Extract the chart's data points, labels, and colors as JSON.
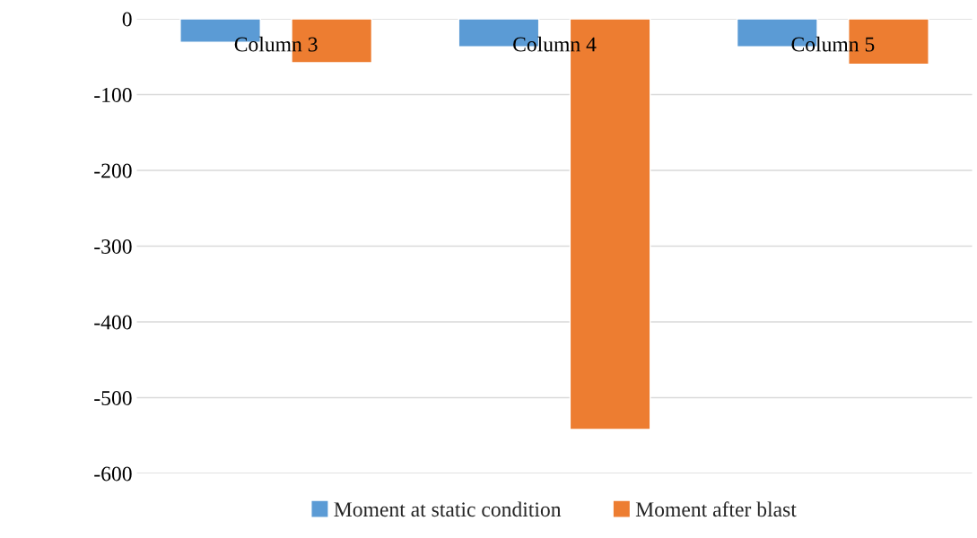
{
  "chart_data": {
    "type": "bar",
    "categories": [
      "Column 3",
      "Column 4",
      "Column 5"
    ],
    "series": [
      {
        "name": "Moment at static condition",
        "color": "#5b9bd5",
        "values": [
          -31,
          -37,
          -37
        ]
      },
      {
        "name": "Moment after blast",
        "color": "#ed7d31",
        "values": [
          -58,
          -542,
          -60
        ]
      }
    ],
    "ylim": [
      -600,
      0
    ],
    "yticks": [
      -600,
      -500,
      -400,
      -300,
      -200,
      -100,
      0
    ],
    "grid": "y",
    "legend": "bottom"
  }
}
